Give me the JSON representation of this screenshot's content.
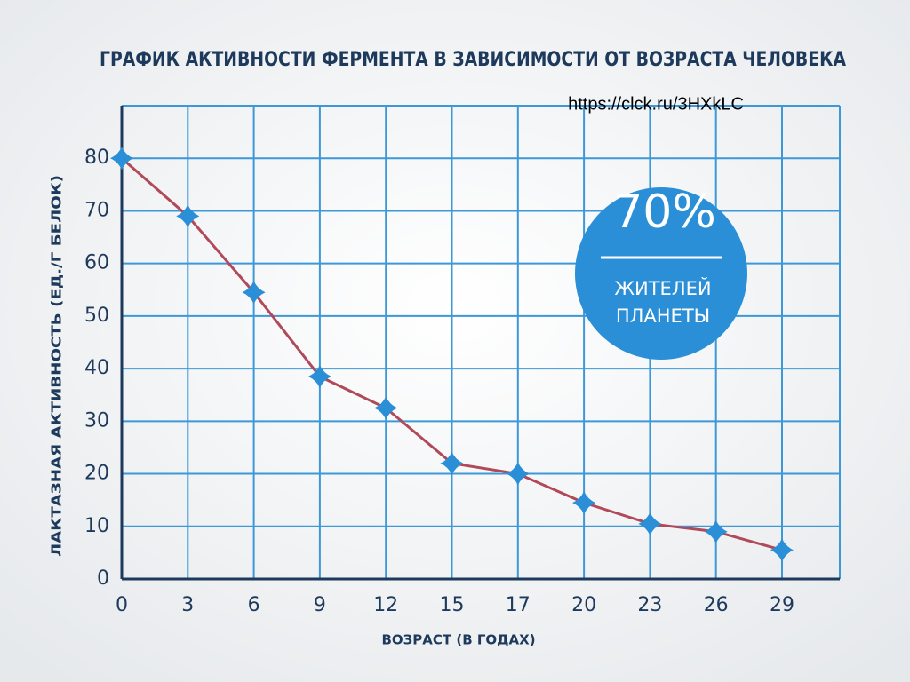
{
  "chart_data": {
    "type": "line",
    "title": "ГРАФИК АКТИВНОСТИ ФЕРМЕНТА В ЗАВИСИМОСТИ ОТ ВОЗРАСТА ЧЕЛОВЕКА",
    "x_label": "ВОЗРАСТ (В ГОДАХ)",
    "y_label": "ЛАКТАЗНАЯ АКТИВНОСТЬ (ЕД./Г БЕЛОК)",
    "categories": [
      "0",
      "3",
      "6",
      "9",
      "12",
      "15",
      "17",
      "20",
      "23",
      "26",
      "29"
    ],
    "series": [
      {
        "color": "#b04a5a",
        "marker_color": "#2a8fd6",
        "values": [
          80,
          69,
          54.5,
          38.5,
          32.5,
          22,
          20,
          14.5,
          10.5,
          9,
          5.5
        ]
      }
    ],
    "ylim": [
      0,
      90
    ],
    "yticks": [
      0,
      10,
      20,
      30,
      40,
      50,
      60,
      70,
      80
    ],
    "grid": true,
    "annotations": [
      "70%",
      "ЖИТЕЛЕЙ",
      "ПЛАНЕТЫ"
    ],
    "source": "https://clck.ru/3HXkLC"
  }
}
